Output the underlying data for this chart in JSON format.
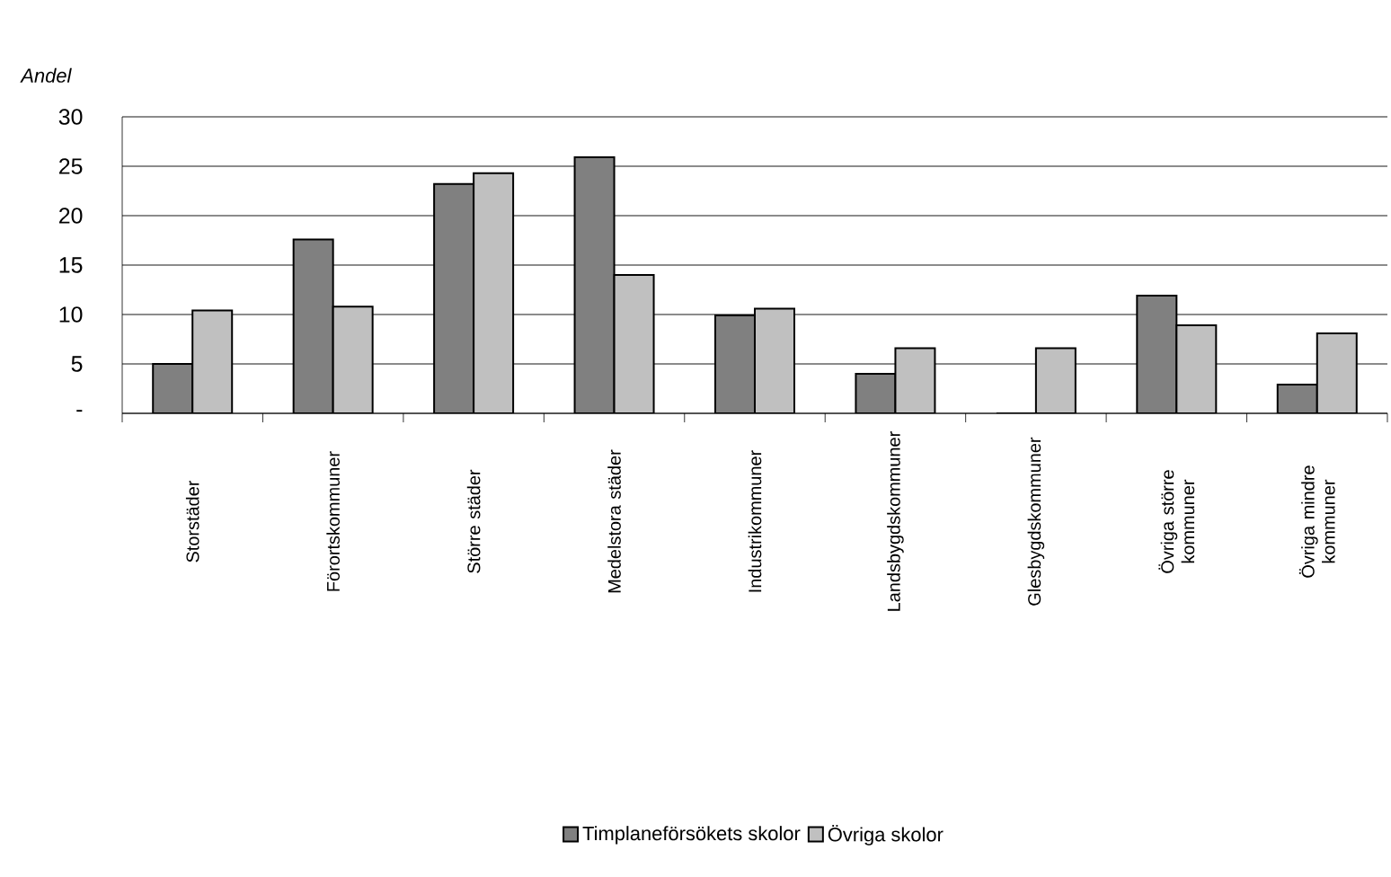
{
  "chart_data": {
    "type": "bar",
    "ylabel": "Andel",
    "categories": [
      "Storstäder",
      "Förortskommuner",
      "Större städer",
      "Medelstora städer",
      "Industrikommuner",
      "Landsbygdskommuner",
      "Glesbygdskommuner",
      "Övriga större kommuner",
      "Övriga mindre kommuner"
    ],
    "series": [
      {
        "name": "Timplaneförsökets skolor",
        "color": "#808080",
        "values": [
          5.0,
          17.6,
          23.2,
          25.9,
          9.9,
          4.0,
          0,
          11.9,
          2.9
        ]
      },
      {
        "name": "Övriga skolor",
        "color": "#c0c0c0",
        "values": [
          10.4,
          10.8,
          24.3,
          14.0,
          10.6,
          6.6,
          6.6,
          8.9,
          8.1
        ]
      }
    ],
    "ylim": [
      0,
      30
    ],
    "yticks": [
      {
        "value": 0,
        "label": "-"
      },
      5,
      10,
      15,
      20,
      25,
      30
    ],
    "grid": "y",
    "legend": "bottom"
  }
}
